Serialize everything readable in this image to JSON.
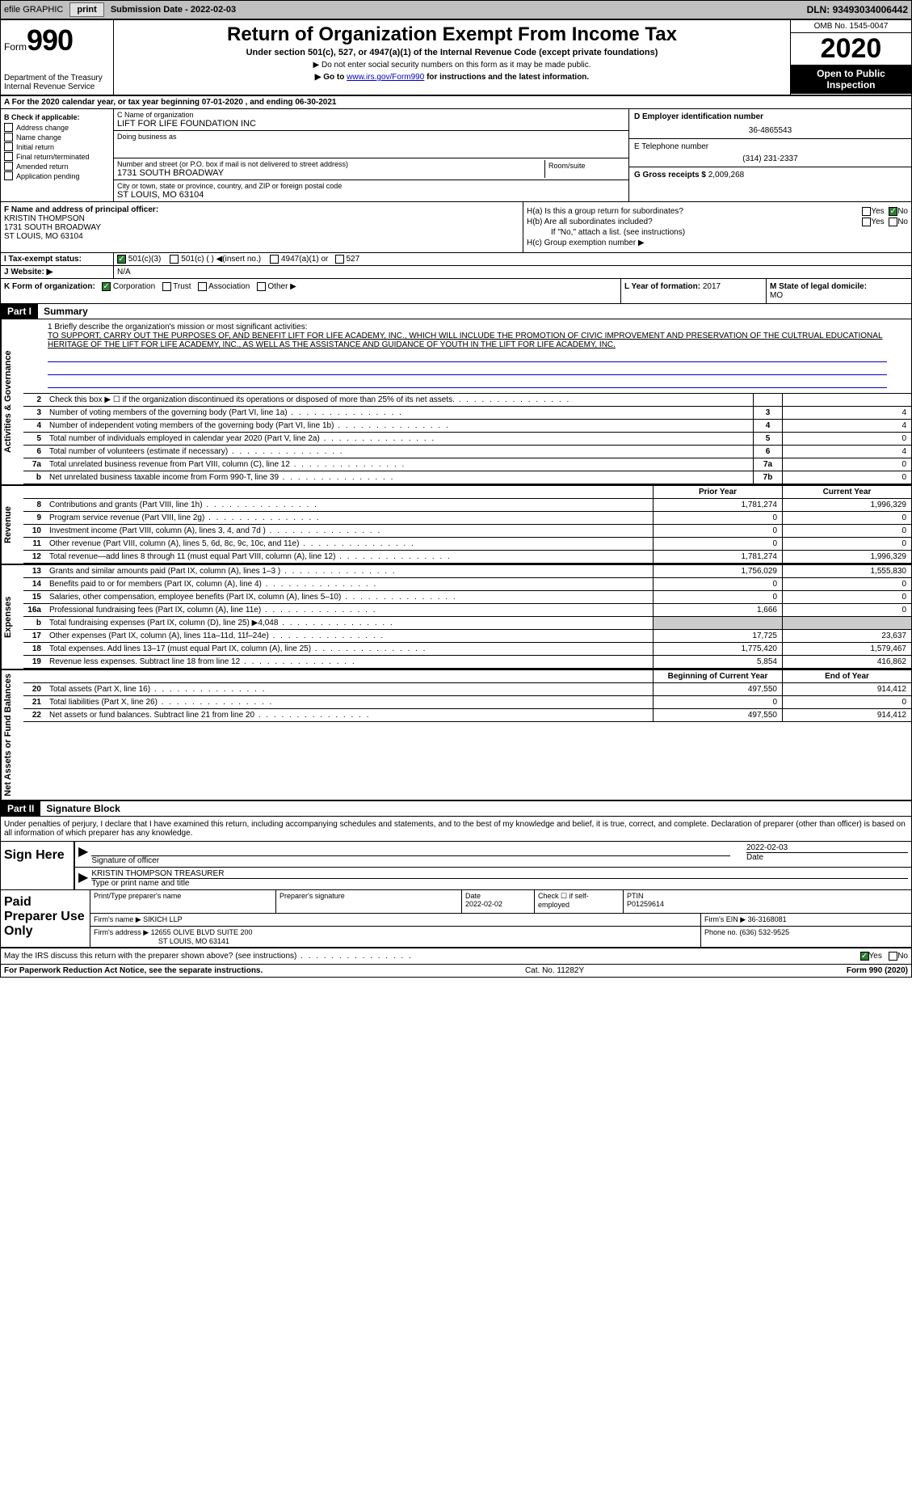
{
  "toolbar": {
    "efile": "efile GRAPHIC",
    "print": "print",
    "sub_label": "Submission Date - ",
    "sub_date": "2022-02-03",
    "dln_label": "DLN: ",
    "dln": "93493034006442"
  },
  "header": {
    "form_word": "Form",
    "form_num": "990",
    "dept": "Department of the Treasury",
    "irs": "Internal Revenue Service",
    "title": "Return of Organization Exempt From Income Tax",
    "sub": "Under section 501(c), 527, or 4947(a)(1) of the Internal Revenue Code (except private foundations)",
    "note1": "▶ Do not enter social security numbers on this form as it may be made public.",
    "note2_pre": "▶ Go to ",
    "note2_link": "www.irs.gov/Form990",
    "note2_post": " for instructions and the latest information.",
    "omb": "OMB No. 1545-0047",
    "year": "2020",
    "oti": "Open to Public Inspection"
  },
  "row_a": "A For the 2020 calendar year, or tax year beginning 07-01-2020    , and ending 06-30-2021",
  "b": {
    "label": "B Check if applicable:",
    "items": [
      "Address change",
      "Name change",
      "Initial return",
      "Final return/terminated",
      "Amended return",
      "Application pending"
    ]
  },
  "c": {
    "name_label": "C Name of organization",
    "name": "LIFT FOR LIFE FOUNDATION INC",
    "dba_label": "Doing business as",
    "dba": "",
    "addr_label": "Number and street (or P.O. box if mail is not delivered to street address)",
    "room_label": "Room/suite",
    "addr": "1731 SOUTH BROADWAY",
    "city_label": "City or town, state or province, country, and ZIP or foreign postal code",
    "city": "ST LOUIS, MO  63104"
  },
  "d": {
    "label": "D Employer identification number",
    "val": "36-4865543"
  },
  "e": {
    "label": "E Telephone number",
    "val": "(314) 231-2337"
  },
  "g": {
    "label": "G Gross receipts $ ",
    "val": "2,009,268"
  },
  "f": {
    "label": "F Name and address of principal officer:",
    "name": "KRISTIN THOMPSON",
    "addr1": "1731 SOUTH BROADWAY",
    "addr2": "ST LOUIS, MO  63104"
  },
  "h": {
    "a_label": "H(a)  Is this a group return for subordinates?",
    "b_label": "H(b)  Are all subordinates included?",
    "b_note": "If \"No,\" attach a list. (see instructions)",
    "c_label": "H(c)  Group exemption number ▶",
    "yes": "Yes",
    "no": "No"
  },
  "i": {
    "label": "I      Tax-exempt status:",
    "o1": "501(c)(3)",
    "o2": "501(c) (  ) ◀(insert no.)",
    "o3": "4947(a)(1) or",
    "o4": "527"
  },
  "j": {
    "label": "J      Website: ▶",
    "val": "N/A"
  },
  "k": {
    "label": "K Form of organization:",
    "o1": "Corporation",
    "o2": "Trust",
    "o3": "Association",
    "o4": "Other ▶"
  },
  "l": {
    "label": "L Year of formation: ",
    "val": "2017"
  },
  "m": {
    "label": "M State of legal domicile:",
    "val": "MO"
  },
  "part1": {
    "tag": "Part I",
    "title": "Summary"
  },
  "mission": {
    "intro": "1  Briefly describe the organization's mission or most significant activities:",
    "text": "TO SUPPORT, CARRY OUT THE PURPOSES OF, AND BENEFIT LIFT FOR LIFE ACADEMY, INC., WHICH WILL INCLUDE THE PROMOTION OF CIVIC IMPROVEMENT AND PRESERVATION OF THE CULTRUAL EDUCATIONAL HERITAGE OF THE LIFT FOR LIFE ACADEMY, INC., AS WELL AS THE ASSISTANCE AND GUIDANCE OF YOUTH IN THE LIFT FOR LIFE ACADEMY, INC."
  },
  "gov_lines": [
    {
      "n": "2",
      "t": "Check this box ▶ ☐ if the organization discontinued its operations or disposed of more than 25% of its net assets.",
      "r": "",
      "v": ""
    },
    {
      "n": "3",
      "t": "Number of voting members of the governing body (Part VI, line 1a)",
      "r": "3",
      "v": "4"
    },
    {
      "n": "4",
      "t": "Number of independent voting members of the governing body (Part VI, line 1b)",
      "r": "4",
      "v": "4"
    },
    {
      "n": "5",
      "t": "Total number of individuals employed in calendar year 2020 (Part V, line 2a)",
      "r": "5",
      "v": "0"
    },
    {
      "n": "6",
      "t": "Total number of volunteers (estimate if necessary)",
      "r": "6",
      "v": "4"
    },
    {
      "n": "7a",
      "t": "Total unrelated business revenue from Part VIII, column (C), line 12",
      "r": "7a",
      "v": "0"
    },
    {
      "n": "b",
      "t": "Net unrelated business taxable income from Form 990-T, line 39",
      "r": "7b",
      "v": "0"
    }
  ],
  "col_hdrs": {
    "prior": "Prior Year",
    "current": "Current Year",
    "beg": "Beginning of Current Year",
    "end": "End of Year"
  },
  "rev_lines": [
    {
      "n": "8",
      "t": "Contributions and grants (Part VIII, line 1h)",
      "p": "1,781,274",
      "c": "1,996,329"
    },
    {
      "n": "9",
      "t": "Program service revenue (Part VIII, line 2g)",
      "p": "0",
      "c": "0"
    },
    {
      "n": "10",
      "t": "Investment income (Part VIII, column (A), lines 3, 4, and 7d )",
      "p": "0",
      "c": "0"
    },
    {
      "n": "11",
      "t": "Other revenue (Part VIII, column (A), lines 5, 6d, 8c, 9c, 10c, and 11e)",
      "p": "0",
      "c": "0"
    },
    {
      "n": "12",
      "t": "Total revenue—add lines 8 through 11 (must equal Part VIII, column (A), line 12)",
      "p": "1,781,274",
      "c": "1,996,329"
    }
  ],
  "exp_lines": [
    {
      "n": "13",
      "t": "Grants and similar amounts paid (Part IX, column (A), lines 1–3 )",
      "p": "1,756,029",
      "c": "1,555,830"
    },
    {
      "n": "14",
      "t": "Benefits paid to or for members (Part IX, column (A), line 4)",
      "p": "0",
      "c": "0"
    },
    {
      "n": "15",
      "t": "Salaries, other compensation, employee benefits (Part IX, column (A), lines 5–10)",
      "p": "0",
      "c": "0"
    },
    {
      "n": "16a",
      "t": "Professional fundraising fees (Part IX, column (A), line 11e)",
      "p": "1,666",
      "c": "0"
    },
    {
      "n": "b",
      "t": "Total fundraising expenses (Part IX, column (D), line 25) ▶4,048",
      "p": "",
      "c": ""
    },
    {
      "n": "17",
      "t": "Other expenses (Part IX, column (A), lines 11a–11d, 11f–24e)",
      "p": "17,725",
      "c": "23,637"
    },
    {
      "n": "18",
      "t": "Total expenses. Add lines 13–17 (must equal Part IX, column (A), line 25)",
      "p": "1,775,420",
      "c": "1,579,467"
    },
    {
      "n": "19",
      "t": "Revenue less expenses. Subtract line 18 from line 12",
      "p": "5,854",
      "c": "416,862"
    }
  ],
  "net_lines": [
    {
      "n": "20",
      "t": "Total assets (Part X, line 16)",
      "p": "497,550",
      "c": "914,412"
    },
    {
      "n": "21",
      "t": "Total liabilities (Part X, line 26)",
      "p": "0",
      "c": "0"
    },
    {
      "n": "22",
      "t": "Net assets or fund balances. Subtract line 21 from line 20",
      "p": "497,550",
      "c": "914,412"
    }
  ],
  "part2": {
    "tag": "Part II",
    "title": "Signature Block"
  },
  "sig": {
    "intro": "Under penalties of perjury, I declare that I have examined this return, including accompanying schedules and statements, and to the best of my knowledge and belief, it is true, correct, and complete. Declaration of preparer (other than officer) is based on all information of which preparer has any knowledge.",
    "here": "Sign Here",
    "sig_of": "Signature of officer",
    "date": "2022-02-03",
    "date_lbl": "Date",
    "name": "KRISTIN THOMPSON  TREASURER",
    "name_lbl": "Type or print name and title"
  },
  "prep": {
    "lbl": "Paid Preparer Use Only",
    "h1": "Print/Type preparer's name",
    "h2": "Preparer's signature",
    "h3": "Date",
    "h3v": "2022-02-02",
    "h4": "Check ☐ if self-employed",
    "h5": "PTIN",
    "h5v": "P01259614",
    "firm_lbl": "Firm's name    ▶ ",
    "firm": "SIKICH LLP",
    "ein_lbl": "Firm's EIN ▶ ",
    "ein": "36-3168081",
    "addr_lbl": "Firm's address ▶ ",
    "addr1": "12655 OLIVE BLVD SUITE 200",
    "addr2": "ST LOUIS, MO  63141",
    "phone_lbl": "Phone no. ",
    "phone": "(636) 532-9525"
  },
  "discuss": {
    "txt": "May the IRS discuss this return with the preparer shown above? (see instructions)",
    "yes": "Yes",
    "no": "No"
  },
  "footer": {
    "pra": "For Paperwork Reduction Act Notice, see the separate instructions.",
    "cat": "Cat. No. 11282Y",
    "form": "Form 990 (2020)"
  },
  "vtabs": {
    "gov": "Activities & Governance",
    "rev": "Revenue",
    "exp": "Expenses",
    "net": "Net Assets or Fund Balances"
  }
}
